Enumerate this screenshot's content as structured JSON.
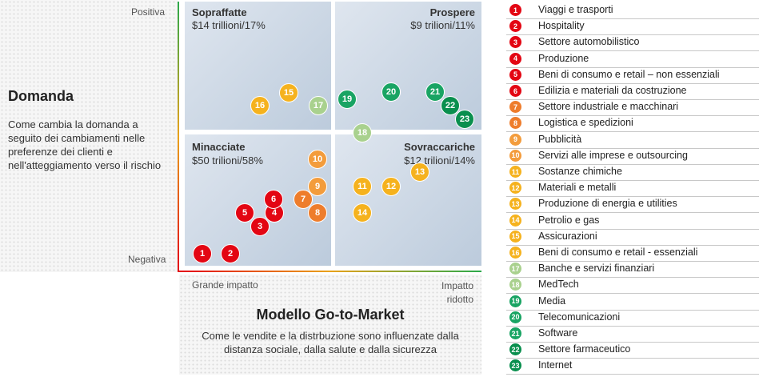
{
  "y_axis": {
    "top_label": "Positiva",
    "bottom_label": "Negativa",
    "title": "Domanda",
    "description": "Come cambia la domanda a seguito dei cambiamenti nelle preferenze dei clienti e nell'atteggiamento verso il rischio"
  },
  "x_axis": {
    "left_label": "Grande impatto",
    "right_label": "Impatto ridotto",
    "title": "Modello Go-to-Market",
    "description": "Come le vendite e la distrbuzione sono influenzate dalla distanza sociale, dalla salute e dalla sicurezza"
  },
  "quadrants": [
    {
      "id": "top-left",
      "title": "Sopraffatte",
      "value": "$14 trillioni/17%"
    },
    {
      "id": "top-right",
      "title": "Prospere",
      "value": "$9 trilioni/11%"
    },
    {
      "id": "bottom-left",
      "title": "Minacciate",
      "value": "$50 trilioni/58%"
    },
    {
      "id": "bottom-right",
      "title": "Sovraccariche",
      "value": "$12 trilioni/14%"
    }
  ],
  "colors": {
    "red": "#e30613",
    "orange_dark": "#ee7d2c",
    "orange": "#f39c3c",
    "yellow": "#f5b21e",
    "light_green": "#a9d18e",
    "green": "#19a463",
    "dark_green": "#0a8f4e"
  },
  "legend": [
    {
      "n": "1",
      "label": "Viaggi e trasporti",
      "color": "red"
    },
    {
      "n": "2",
      "label": "Hospitality",
      "color": "red"
    },
    {
      "n": "3",
      "label": "Settore automobilistico",
      "color": "red"
    },
    {
      "n": "4",
      "label": "Produzione",
      "color": "red"
    },
    {
      "n": "5",
      "label": "Beni di consumo e retail – non essenziali",
      "color": "red"
    },
    {
      "n": "6",
      "label": "Edilizia e materiali da costruzione",
      "color": "red"
    },
    {
      "n": "7",
      "label": "Settore industriale e macchinari",
      "color": "orange_dark"
    },
    {
      "n": "8",
      "label": "Logistica e spedizioni",
      "color": "orange_dark"
    },
    {
      "n": "9",
      "label": "Pubblicità",
      "color": "orange"
    },
    {
      "n": "10",
      "label": "Servizi alle imprese e outsourcing",
      "color": "orange"
    },
    {
      "n": "11",
      "label": "Sostanze chimiche",
      "color": "yellow"
    },
    {
      "n": "12",
      "label": "Materiali e metalli",
      "color": "yellow"
    },
    {
      "n": "13",
      "label": "Produzione di energia e utilities",
      "color": "yellow"
    },
    {
      "n": "14",
      "label": "Petrolio e gas",
      "color": "yellow"
    },
    {
      "n": "15",
      "label": "Assicurazioni",
      "color": "yellow"
    },
    {
      "n": "16",
      "label": "Beni di consumo e retail - essenziali",
      "color": "yellow"
    },
    {
      "n": "17",
      "label": "Banche e servizi finanziari",
      "color": "light_green"
    },
    {
      "n": "18",
      "label": "MedTech",
      "color": "light_green"
    },
    {
      "n": "19",
      "label": "Media",
      "color": "green"
    },
    {
      "n": "20",
      "label": "Telecomunicazioni",
      "color": "green"
    },
    {
      "n": "21",
      "label": "Software",
      "color": "green"
    },
    {
      "n": "22",
      "label": "Settore farmaceutico",
      "color": "dark_green"
    },
    {
      "n": "23",
      "label": "Internet",
      "color": "dark_green"
    }
  ]
}
